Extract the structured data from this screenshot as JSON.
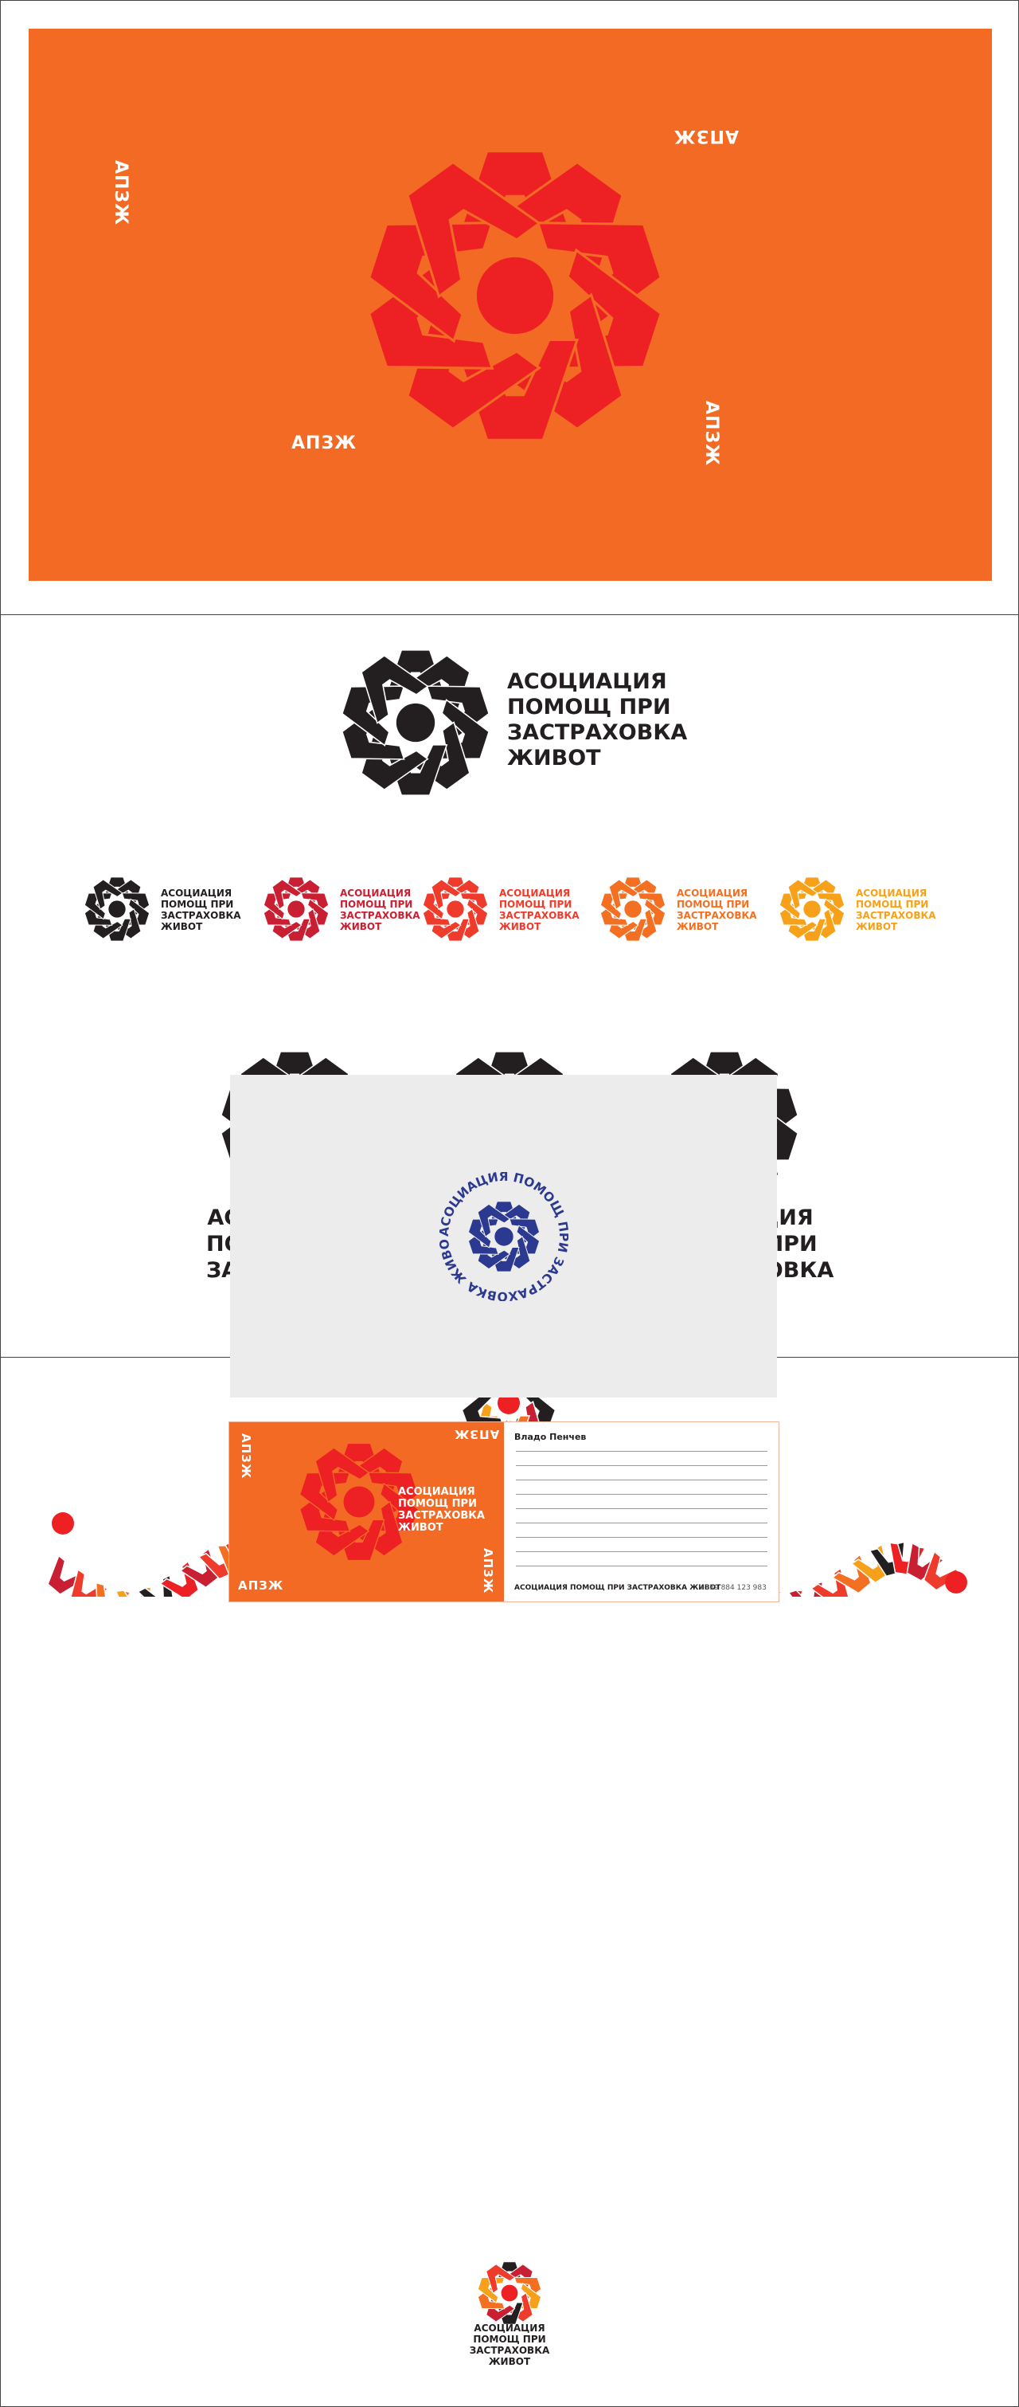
{
  "banner": {
    "labels": [
      "АПЗЖ",
      "АПЗЖ",
      "АПЗЖ",
      "АПЗЖ"
    ]
  },
  "organization": {
    "name_lines": [
      "АСОЦИАЦИЯ",
      "ПОМОЩ ПРИ",
      "ЗАСТРАХОВКА",
      "ЖИВОТ"
    ],
    "full_name": "АСОЦИАЦИЯ ПОМОЩ ПРИ ЗАСТРАХОВКА ЖИВОТ"
  },
  "seal": {
    "circular_text": "АСОЦИАЦИЯ ПОМОЩ ПРИ ЗАСТРАХОВКА ЖИВОТ"
  },
  "postcard": {
    "front_labels": [
      "АПЗЖ",
      "АПЗЖ",
      "АПЗЖ",
      "АПЗЖ"
    ],
    "recipient_name": "Владо Пенчев",
    "footer_org": "АСОЦИАЦИЯ ПОМОЩ ПРИ ЗАСТРАХОВКА ЖИВОТ",
    "footer_phone": "+359 884 123 983"
  },
  "palette": {
    "orange": "#f26a24",
    "red": "#ed2024",
    "dark_red": "#c81f32",
    "light_red": "#ef3b2c",
    "orange_mid": "#f36f21",
    "yellow_orange": "#f7a11a",
    "black": "#231f20",
    "navy": "#2b3990",
    "light_gray": "#ececec"
  },
  "icons": {
    "logo": "gear-a-emblem-icon",
    "dot": "red-dot-icon"
  }
}
